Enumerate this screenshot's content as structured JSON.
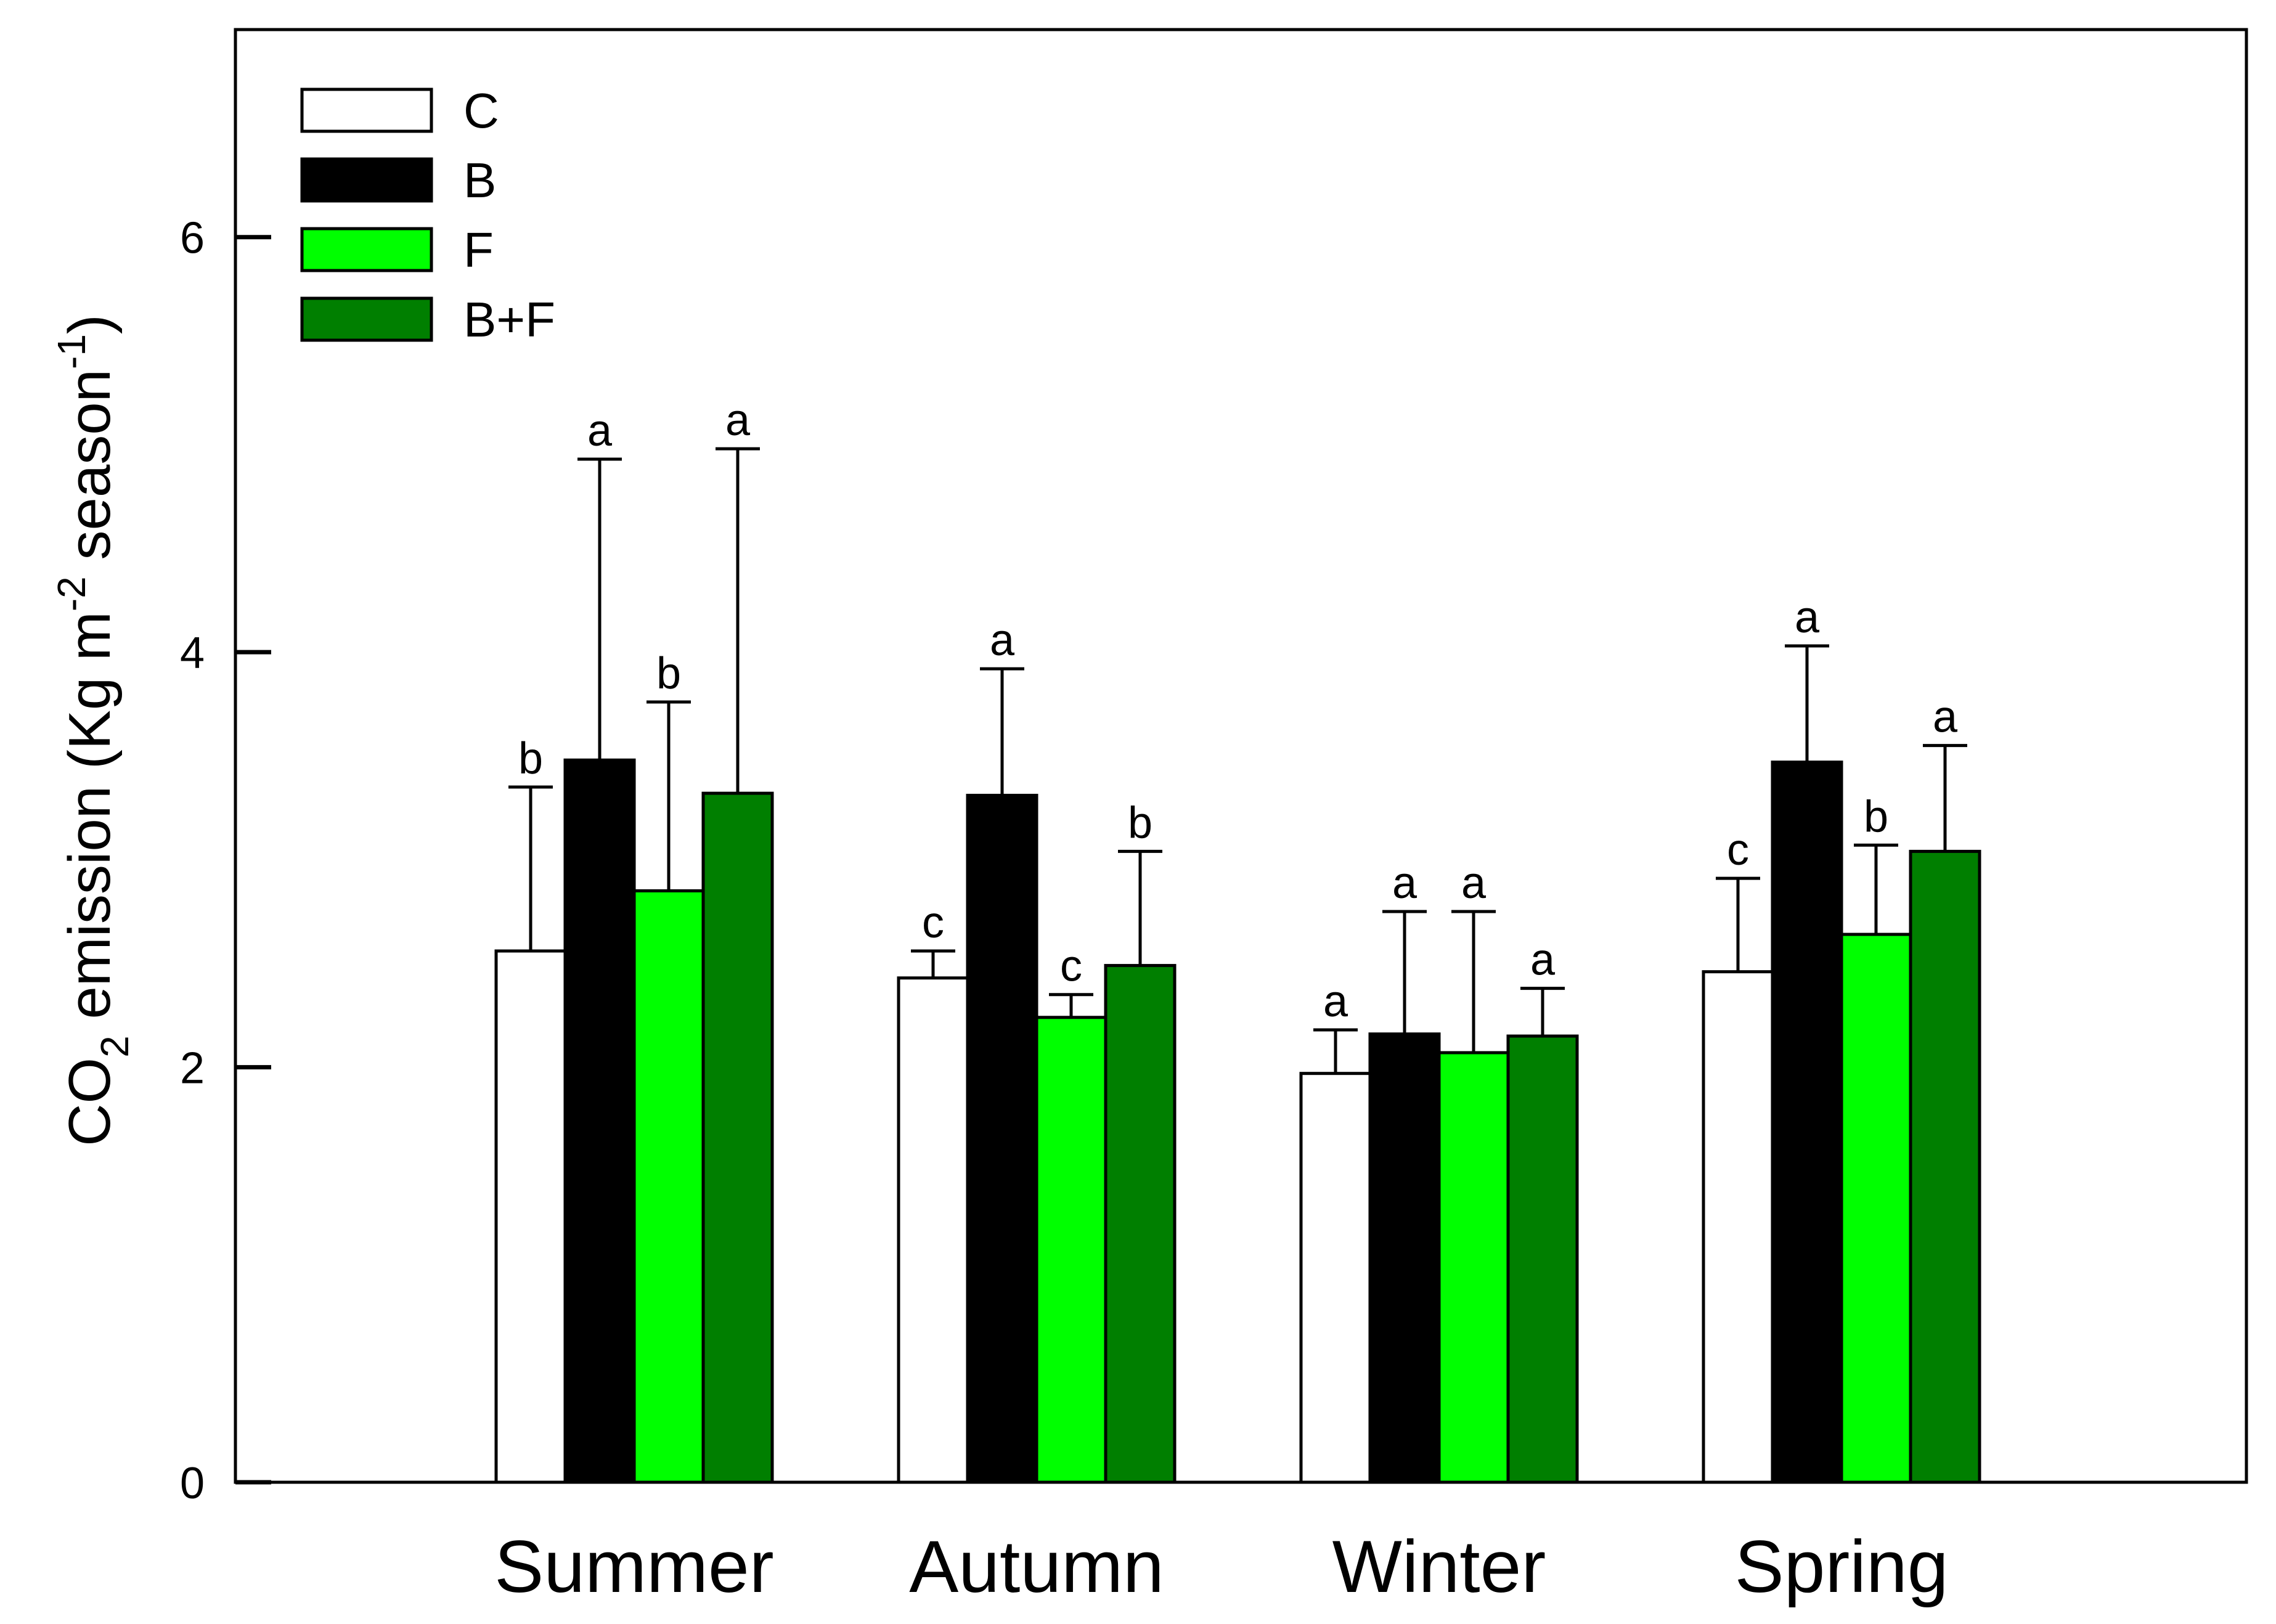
{
  "chart_data": {
    "type": "bar",
    "title": "",
    "xlabel": "",
    "ylabel": {
      "pre": "CO",
      "sub": "2",
      "mid": " emission (Kg m",
      "sup1": "-2",
      "mid2": " season",
      "sup2": "-1",
      "post": ")"
    },
    "categories": [
      "Summer",
      "Autumn",
      "Winter",
      "Spring"
    ],
    "ylim": [
      0,
      7
    ],
    "yticks": [
      0,
      2,
      4,
      6
    ],
    "ytick_labels": [
      "0",
      "2",
      "4",
      "6"
    ],
    "legend_position": "top-left",
    "series": [
      {
        "name": "C",
        "color": "#ffffff",
        "values": [
          2.56,
          2.43,
          1.97,
          2.46
        ],
        "errors": [
          0.79,
          0.13,
          0.21,
          0.45
        ],
        "letters": [
          "b",
          "c",
          "a",
          "c"
        ]
      },
      {
        "name": "B",
        "color": "#000000",
        "values": [
          3.48,
          3.31,
          2.16,
          3.47
        ],
        "errors": [
          1.45,
          0.61,
          0.59,
          0.56
        ],
        "letters": [
          "a",
          "a",
          "a",
          "a"
        ]
      },
      {
        "name": "F",
        "color": "#00ff00",
        "values": [
          2.85,
          2.24,
          2.07,
          2.64
        ],
        "errors": [
          0.91,
          0.11,
          0.68,
          0.43
        ],
        "letters": [
          "b",
          "c",
          "a",
          "b"
        ]
      },
      {
        "name": "B+F",
        "color": "#007f00",
        "values": [
          3.32,
          2.49,
          2.15,
          3.04
        ],
        "errors": [
          1.66,
          0.55,
          0.23,
          0.51
        ],
        "letters": [
          "a",
          "b",
          "a",
          "a"
        ]
      }
    ]
  }
}
